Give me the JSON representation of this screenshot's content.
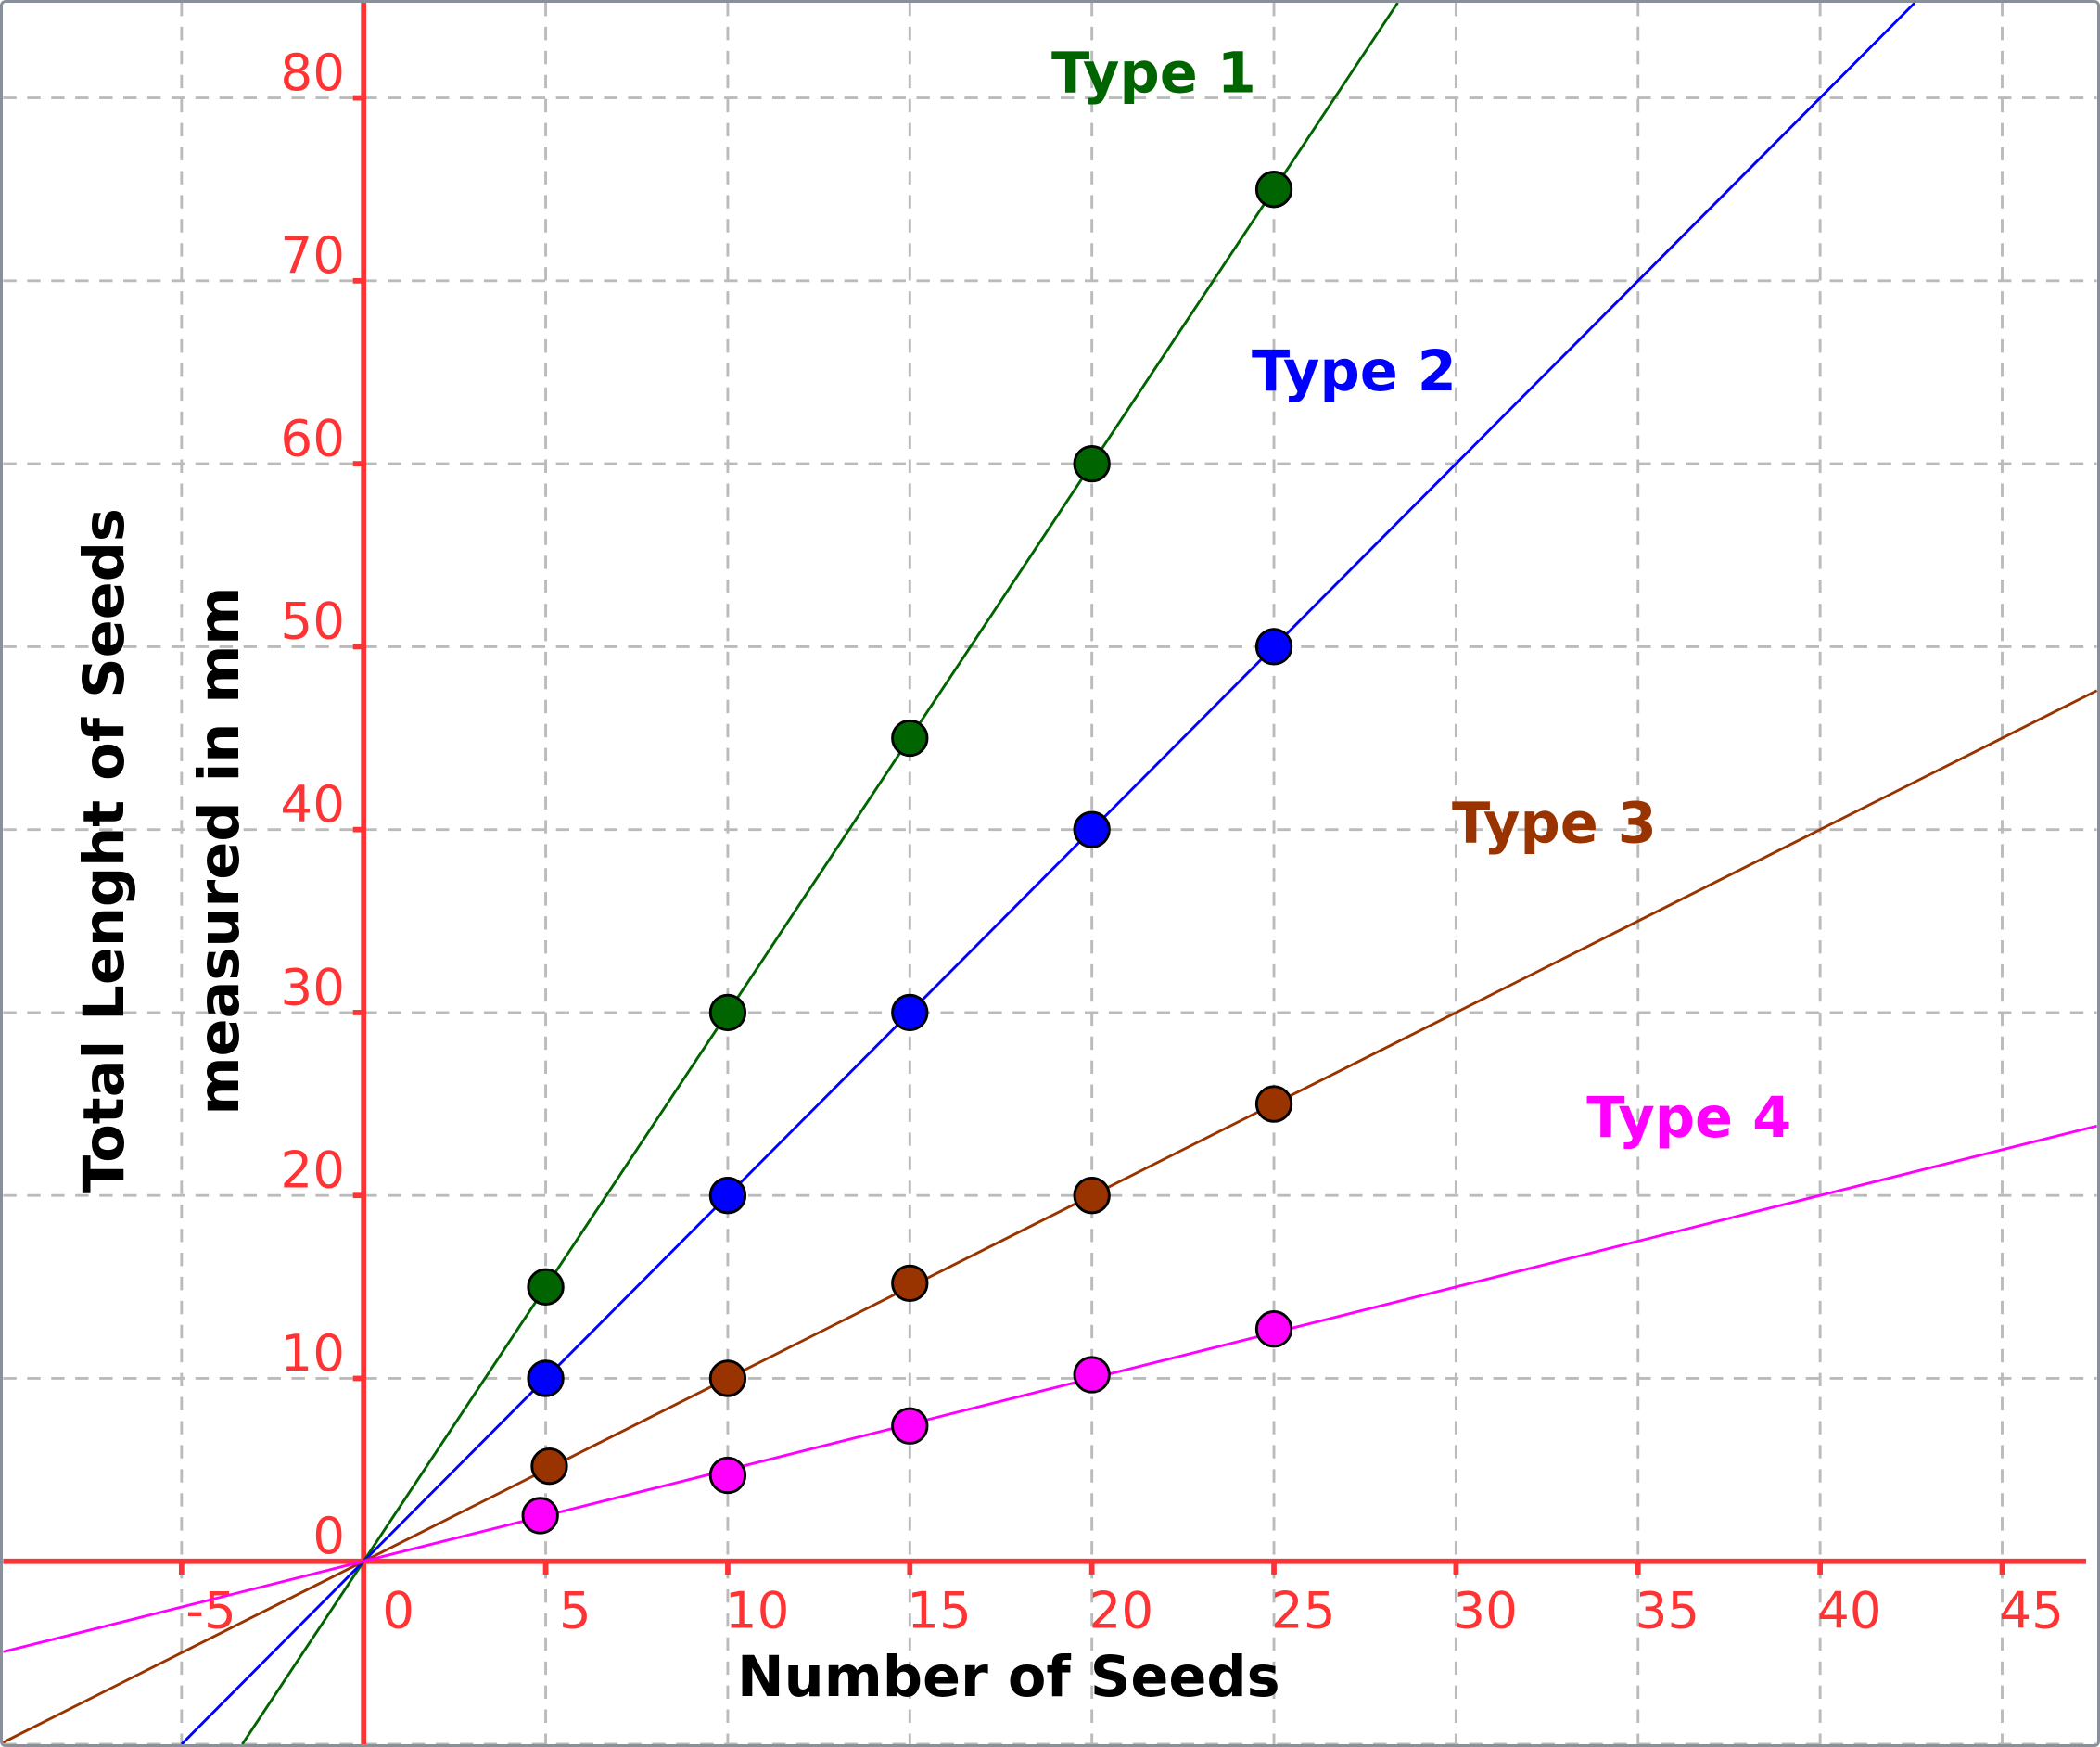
{
  "chart_data": {
    "type": "scatter",
    "title": "",
    "xlabel": "Number of Seeds",
    "ylabel_lines": [
      "Total Lenght of Seeds",
      "measured in mm"
    ],
    "xlim": [
      -9.9,
      47.6
    ],
    "ylim": [
      -10,
      85.2
    ],
    "xticks": [
      -5,
      0,
      5,
      10,
      15,
      20,
      25,
      30,
      35,
      40,
      45
    ],
    "yticks": [
      0,
      10,
      20,
      30,
      40,
      50,
      60,
      70,
      80
    ],
    "grid": true,
    "axis_color": "#ff3333",
    "series": [
      {
        "name": "Type 1",
        "color": "#006400",
        "slope": 3,
        "x": [
          5,
          10,
          15,
          20,
          25
        ],
        "y": [
          15,
          30,
          45,
          60,
          75
        ],
        "label_at": [
          21.7,
          80.3
        ]
      },
      {
        "name": "Type 2",
        "color": "#0000ff",
        "slope": 2,
        "x": [
          5,
          10,
          15,
          20,
          25
        ],
        "y": [
          10,
          20,
          30,
          40,
          50
        ],
        "label_at": [
          27.2,
          64
        ]
      },
      {
        "name": "Type 3",
        "color": "#993300",
        "slope": 1,
        "x": [
          5.1,
          10,
          15,
          20,
          25
        ],
        "y": [
          5.2,
          10,
          15.2,
          20,
          25
        ],
        "label_at": [
          32.7,
          39.3
        ]
      },
      {
        "name": "Type 4",
        "color": "#ff00ff",
        "slope": 0.5,
        "x": [
          4.85,
          10,
          15,
          20,
          25
        ],
        "y": [
          2.5,
          4.7,
          7.4,
          10.2,
          12.7
        ],
        "label_at": [
          36.4,
          23.2
        ]
      }
    ]
  }
}
